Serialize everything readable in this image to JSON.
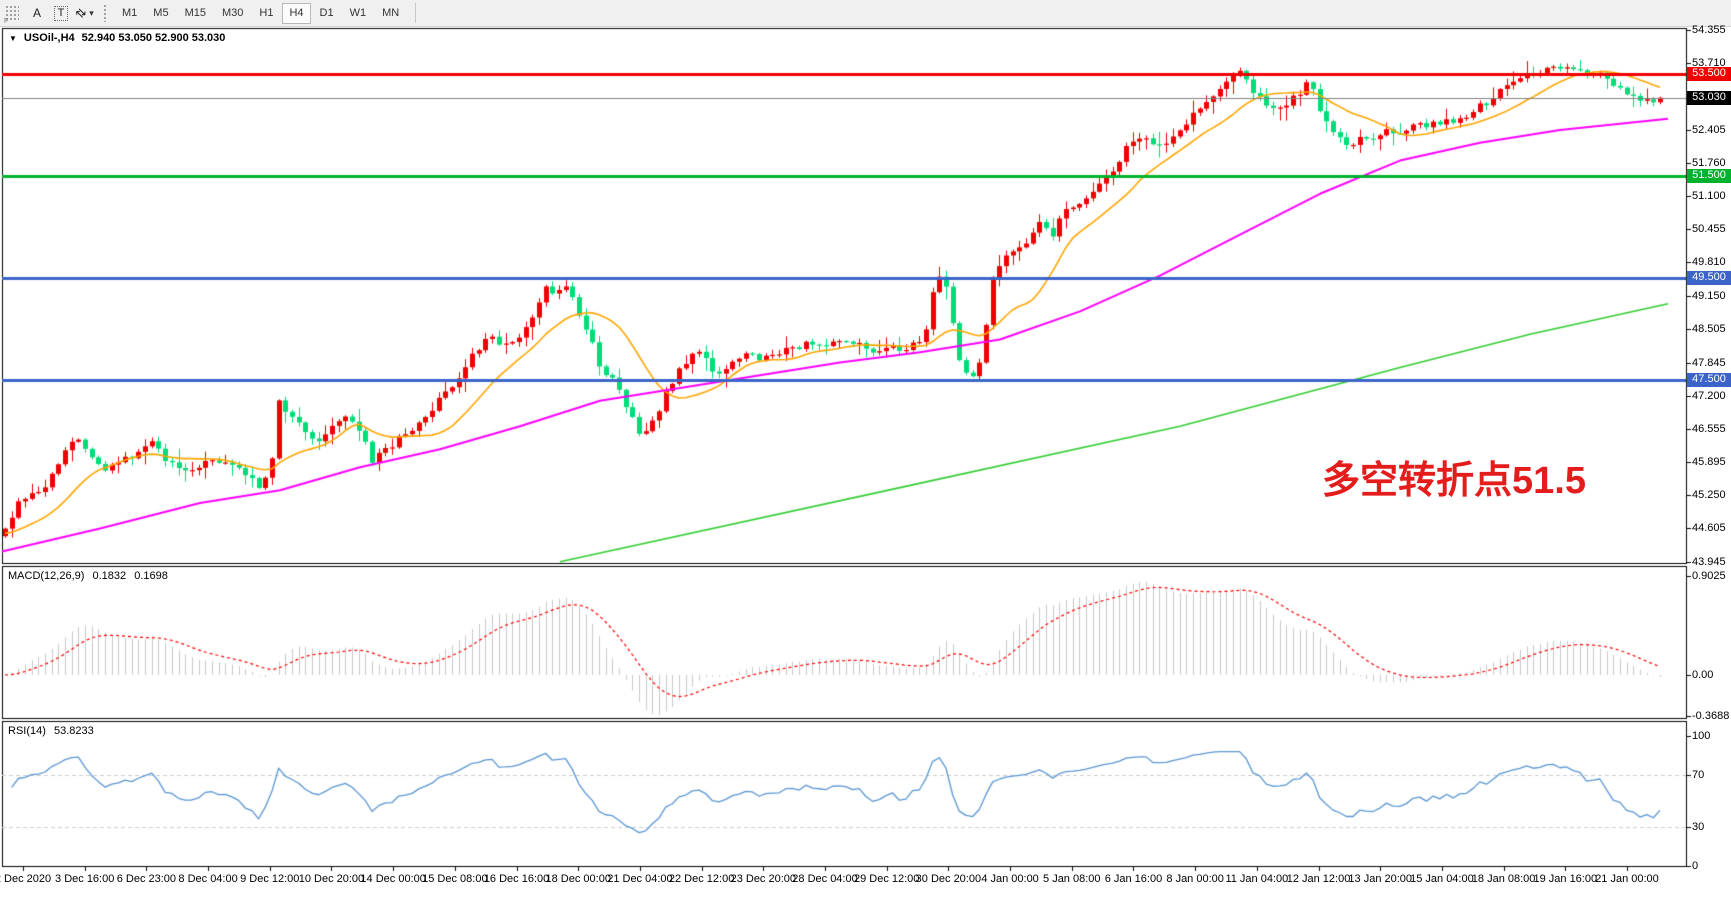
{
  "toolbar": {
    "grip_label": "F",
    "tools": [
      {
        "name": "annotate-letter-tool",
        "label": "A",
        "boxed": false
      },
      {
        "name": "text-box-tool",
        "label": "T",
        "boxed": true
      },
      {
        "name": "cursor-arrows-tool",
        "label": "⇄",
        "boxed": false,
        "caret": "▾"
      }
    ],
    "timeframes": [
      "M1",
      "M5",
      "M15",
      "M30",
      "H1",
      "H4",
      "D1",
      "W1",
      "MN"
    ],
    "active_timeframe": "H4"
  },
  "chart": {
    "title_marker": "▼",
    "title": "USOil-,H4",
    "ohlc": "52.940 53.050 52.900 53.030",
    "annotation": {
      "text": "多空转折点51.5",
      "color": "#e41c1c"
    },
    "current_price": {
      "label": "53.030",
      "value": 53.03,
      "bg": "#000000",
      "line_color": "#808080"
    },
    "levels": [
      {
        "label": "53.500",
        "value": 53.5,
        "color": "#f00000"
      },
      {
        "label": "51.500",
        "value": 51.5,
        "color": "#00b22d"
      },
      {
        "label": "49.500",
        "value": 49.5,
        "color": "#3c64c8"
      },
      {
        "label": "47.500",
        "value": 47.5,
        "color": "#3c64c8"
      }
    ],
    "price_ticks": [
      "54.355",
      "53.710",
      "52.405",
      "51.760",
      "51.100",
      "50.455",
      "49.810",
      "49.150",
      "48.505",
      "47.845",
      "47.200",
      "46.555",
      "45.895",
      "45.250",
      "44.605",
      "43.945"
    ]
  },
  "macd": {
    "label": "MACD(12,26,9)",
    "value_main": "0.1832",
    "value_signal": "0.1698",
    "ticks": [
      "0.9025",
      "0.00",
      "-0.3688"
    ]
  },
  "rsi": {
    "label": "RSI(14)",
    "value": "53.8233",
    "ticks": [
      "100",
      "70",
      "30",
      "0"
    ]
  },
  "time_axis": [
    "2 Dec 2020",
    "3 Dec 16:00",
    "6 Dec 23:00",
    "8 Dec 04:00",
    "9 Dec 12:00",
    "10 Dec 20:00",
    "14 Dec 00:00",
    "15 Dec 08:00",
    "16 Dec 16:00",
    "18 Dec 00:00",
    "21 Dec 04:00",
    "22 Dec 12:00",
    "23 Dec 20:00",
    "28 Dec 04:00",
    "29 Dec 12:00",
    "30 Dec 20:00",
    "4 Jan 00:00",
    "5 Jan 08:00",
    "6 Jan 16:00",
    "8 Jan 00:00",
    "11 Jan 04:00",
    "12 Jan 12:00",
    "13 Jan 20:00",
    "15 Jan 04:00",
    "18 Jan 08:00",
    "19 Jan 16:00",
    "21 Jan 00:00"
  ],
  "chart_data": {
    "type": "candlestick",
    "symbol": "USOil",
    "timeframe": "H4",
    "y_range": [
      43.945,
      54.355
    ],
    "ohlc_current": {
      "open": 52.94,
      "high": 53.05,
      "low": 52.9,
      "close": 53.03
    },
    "levels": [
      53.5,
      51.5,
      49.5,
      47.5
    ],
    "indicators": {
      "macd": {
        "fast": 12,
        "slow": 26,
        "signal": 9,
        "main_value": 0.1832,
        "signal_value": 0.1698,
        "axis_range": [
          -0.3688,
          0.9025
        ]
      },
      "rsi": {
        "period": 14,
        "value": 53.8233,
        "guide_levels": [
          30,
          70
        ],
        "axis_range": [
          0,
          100
        ]
      }
    },
    "price_path": [
      [
        5,
        44.6
      ],
      [
        20,
        45.15
      ],
      [
        45,
        45.4
      ],
      [
        60,
        45.9
      ],
      [
        75,
        46.45
      ],
      [
        90,
        46.1
      ],
      [
        105,
        45.75
      ],
      [
        125,
        45.95
      ],
      [
        140,
        46.1
      ],
      [
        150,
        46.3
      ],
      [
        165,
        45.95
      ],
      [
        180,
        45.7
      ],
      [
        200,
        45.85
      ],
      [
        220,
        45.95
      ],
      [
        240,
        45.8
      ],
      [
        258,
        45.45
      ],
      [
        270,
        45.6
      ],
      [
        278,
        47.05
      ],
      [
        292,
        46.85
      ],
      [
        305,
        46.55
      ],
      [
        318,
        46.3
      ],
      [
        332,
        46.6
      ],
      [
        345,
        46.8
      ],
      [
        360,
        46.5
      ],
      [
        372,
        45.95
      ],
      [
        388,
        46.15
      ],
      [
        400,
        46.4
      ],
      [
        415,
        46.55
      ],
      [
        430,
        46.9
      ],
      [
        445,
        47.3
      ],
      [
        460,
        47.55
      ],
      [
        472,
        47.95
      ],
      [
        488,
        48.35
      ],
      [
        502,
        48.15
      ],
      [
        515,
        48.3
      ],
      [
        530,
        48.65
      ],
      [
        545,
        49.3
      ],
      [
        558,
        49.2
      ],
      [
        568,
        49.35
      ],
      [
        580,
        48.7
      ],
      [
        592,
        48.2
      ],
      [
        602,
        47.65
      ],
      [
        615,
        47.45
      ],
      [
        628,
        46.95
      ],
      [
        638,
        46.4
      ],
      [
        650,
        46.55
      ],
      [
        662,
        47.1
      ],
      [
        675,
        47.6
      ],
      [
        688,
        47.95
      ],
      [
        700,
        48.05
      ],
      [
        712,
        47.7
      ],
      [
        725,
        47.65
      ],
      [
        738,
        47.95
      ],
      [
        750,
        48.1
      ],
      [
        762,
        47.9
      ],
      [
        775,
        48.0
      ],
      [
        790,
        48.1
      ],
      [
        805,
        48.2
      ],
      [
        818,
        48.15
      ],
      [
        832,
        48.3
      ],
      [
        845,
        48.2
      ],
      [
        858,
        48.3
      ],
      [
        872,
        48.05
      ],
      [
        885,
        48.15
      ],
      [
        898,
        48.1
      ],
      [
        912,
        48.2
      ],
      [
        925,
        48.4
      ],
      [
        933,
        49.2
      ],
      [
        940,
        49.55
      ],
      [
        948,
        49.35
      ],
      [
        956,
        48.2
      ],
      [
        963,
        47.7
      ],
      [
        972,
        47.55
      ],
      [
        982,
        47.95
      ],
      [
        993,
        49.6
      ],
      [
        1003,
        49.85
      ],
      [
        1015,
        50.0
      ],
      [
        1028,
        50.25
      ],
      [
        1040,
        50.6
      ],
      [
        1052,
        50.35
      ],
      [
        1065,
        50.8
      ],
      [
        1078,
        51.0
      ],
      [
        1090,
        51.1
      ],
      [
        1103,
        51.35
      ],
      [
        1116,
        51.7
      ],
      [
        1130,
        52.15
      ],
      [
        1143,
        52.3
      ],
      [
        1156,
        52.0
      ],
      [
        1170,
        52.2
      ],
      [
        1185,
        52.55
      ],
      [
        1200,
        52.85
      ],
      [
        1213,
        53.1
      ],
      [
        1226,
        53.4
      ],
      [
        1238,
        53.55
      ],
      [
        1250,
        53.25
      ],
      [
        1262,
        52.95
      ],
      [
        1275,
        52.75
      ],
      [
        1288,
        52.9
      ],
      [
        1300,
        53.15
      ],
      [
        1310,
        53.45
      ],
      [
        1320,
        52.8
      ],
      [
        1333,
        52.35
      ],
      [
        1347,
        52.05
      ],
      [
        1360,
        52.3
      ],
      [
        1373,
        52.2
      ],
      [
        1386,
        52.4
      ],
      [
        1400,
        52.35
      ],
      [
        1413,
        52.45
      ],
      [
        1427,
        52.5
      ],
      [
        1440,
        52.5
      ],
      [
        1453,
        52.6
      ],
      [
        1466,
        52.7
      ],
      [
        1480,
        52.85
      ],
      [
        1494,
        53.05
      ],
      [
        1508,
        53.25
      ],
      [
        1522,
        53.45
      ],
      [
        1536,
        53.5
      ],
      [
        1550,
        53.6
      ],
      [
        1562,
        53.65
      ],
      [
        1575,
        53.5
      ],
      [
        1588,
        53.55
      ],
      [
        1600,
        53.45
      ],
      [
        1613,
        53.25
      ],
      [
        1626,
        53.1
      ],
      [
        1640,
        53.0
      ],
      [
        1660,
        53.03
      ]
    ],
    "ma_mid_path": [
      [
        2,
        44.15
      ],
      [
        100,
        44.6
      ],
      [
        200,
        45.1
      ],
      [
        280,
        45.35
      ],
      [
        360,
        45.8
      ],
      [
        440,
        46.15
      ],
      [
        520,
        46.6
      ],
      [
        600,
        47.1
      ],
      [
        680,
        47.35
      ],
      [
        760,
        47.6
      ],
      [
        840,
        47.85
      ],
      [
        920,
        48.05
      ],
      [
        1000,
        48.3
      ],
      [
        1080,
        48.85
      ],
      [
        1160,
        49.55
      ],
      [
        1240,
        50.35
      ],
      [
        1320,
        51.15
      ],
      [
        1400,
        51.8
      ],
      [
        1480,
        52.15
      ],
      [
        1560,
        52.4
      ],
      [
        1668,
        52.62
      ]
    ],
    "ma_slow_path": [
      [
        560,
        43.95
      ],
      [
        900,
        45.4
      ],
      [
        1180,
        46.6
      ],
      [
        1400,
        47.75
      ],
      [
        1530,
        48.4
      ],
      [
        1668,
        49.0
      ]
    ],
    "colors": {
      "bull": "#f00000",
      "bear": "#00dc78",
      "ma_fast": "#ffa500",
      "ma_mid": "#ff00ff",
      "ma_slow": "#32cd32",
      "macd_hist": "#c8c8c8",
      "macd_signal": "#ff0000",
      "rsi_line": "#5a96d2",
      "guide_dash": "#cccccc"
    }
  }
}
